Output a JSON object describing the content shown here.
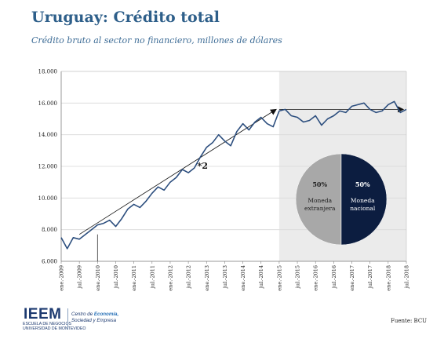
{
  "title": "Uruguay: Crédito total",
  "subtitle": "Crédito bruto al sector no financiero, millones de dólares",
  "source": "Fuente: BCU",
  "footer": {
    "logo_word": "IEEM",
    "logo_school_line1": "ESCUELA DE NEGOCIOS",
    "logo_school_line2": "UNIVERSIDAD DE MONTEVIDEO",
    "center_line1_prefix": "Centro de ",
    "center_line1_bold": "Economía,",
    "center_line2": "Sociedad y Empresa"
  },
  "colors": {
    "title": "#2e5f8a",
    "line": "#2c4e7e",
    "shade": "#ebebeb",
    "pie_foreign": "#a8a8a8",
    "pie_national": "#0c1d40"
  },
  "chart_data": [
    {
      "type": "line",
      "ylim": [
        6000,
        18000
      ],
      "yticks": [
        "6.000",
        "8.000",
        "10.000",
        "12.000",
        "14.000",
        "16.000",
        "18.000"
      ],
      "ytick_values": [
        6000,
        8000,
        10000,
        12000,
        14000,
        16000,
        18000
      ],
      "xlim": [
        "2009-01",
        "2018-07"
      ],
      "xtick_labels": [
        "ene.-2009",
        "jul.-2009",
        "ene.-2010",
        "jul.-2010",
        "ene.-2011",
        "jul.-2011",
        "ene.-2012",
        "jul.-2012",
        "ene.-2013",
        "jul.-2013",
        "ene.-2014",
        "jul.-2014",
        "ene.-2015",
        "jul.-2015",
        "ene.-2016",
        "jul.-2016",
        "ene.-2017",
        "jul.-2017",
        "ene.-2018",
        "jul.-2018"
      ],
      "xtick_dates": [
        "2009-01",
        "2009-07",
        "2010-01",
        "2010-07",
        "2011-01",
        "2011-07",
        "2012-01",
        "2012-07",
        "2013-01",
        "2013-07",
        "2014-01",
        "2014-07",
        "2015-01",
        "2015-07",
        "2016-01",
        "2016-07",
        "2017-01",
        "2017-07",
        "2018-01",
        "2018-07"
      ],
      "shaded_region": [
        "2015-01",
        "2018-07"
      ],
      "series": [
        {
          "x": [
            "2009-01",
            "2009-03",
            "2009-05",
            "2009-07",
            "2009-09",
            "2009-11",
            "2010-01",
            "2010-03",
            "2010-05",
            "2010-07",
            "2010-09",
            "2010-11",
            "2011-01",
            "2011-03",
            "2011-05",
            "2011-07",
            "2011-09",
            "2011-11",
            "2012-01",
            "2012-03",
            "2012-05",
            "2012-07",
            "2012-09",
            "2012-11",
            "2013-01",
            "2013-03",
            "2013-05",
            "2013-07",
            "2013-09",
            "2013-11",
            "2014-01",
            "2014-03",
            "2014-05",
            "2014-07",
            "2014-09",
            "2014-11",
            "2015-01",
            "2015-03",
            "2015-05",
            "2015-07",
            "2015-09",
            "2015-11",
            "2016-01",
            "2016-03",
            "2016-05",
            "2016-07",
            "2016-09",
            "2016-11",
            "2017-01",
            "2017-03",
            "2017-05",
            "2017-07",
            "2017-09",
            "2017-11",
            "2018-01",
            "2018-03",
            "2018-05",
            "2018-07"
          ],
          "values": [
            7500,
            6800,
            7500,
            7400,
            7700,
            8000,
            8300,
            8400,
            8600,
            8200,
            8700,
            9300,
            9600,
            9400,
            9800,
            10300,
            10700,
            10500,
            11000,
            11300,
            11800,
            11600,
            11900,
            12600,
            13200,
            13500,
            14000,
            13600,
            13300,
            14200,
            14700,
            14300,
            14800,
            15100,
            14700,
            14500,
            15500,
            15600,
            15200,
            15100,
            14800,
            14900,
            15200,
            14600,
            15000,
            15200,
            15500,
            15400,
            15800,
            15900,
            16000,
            15600,
            15400,
            15500,
            15900,
            16100,
            15400,
            15600
          ]
        }
      ],
      "annotations": {
        "label": "*2",
        "arrow_from": {
          "x": "2009-07",
          "y": 7700
        },
        "arrow_to": {
          "x": "2014-12",
          "y": 15600
        },
        "flat_arrow_from": {
          "x": "2015-01",
          "y": 15600
        },
        "flat_arrow_to": {
          "x": "2018-06",
          "y": 15600
        },
        "marker_x": "2010-01"
      }
    },
    {
      "type": "pie",
      "labels": [
        "Moneda extranjera",
        "Moneda nacional"
      ],
      "label_lines": [
        [
          "Moneda",
          "extranjera"
        ],
        [
          "Moneda",
          "nacional"
        ]
      ],
      "values": [
        50,
        50
      ],
      "value_labels": [
        "50%",
        "50%"
      ]
    }
  ]
}
